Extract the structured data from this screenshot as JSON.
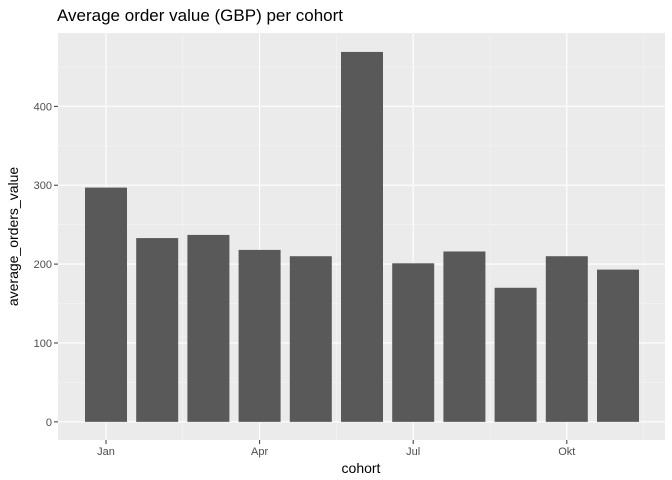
{
  "chart_data": {
    "type": "bar",
    "title": "Average order value (GBP) per cohort",
    "xlabel": "cohort",
    "ylabel": "average_orders_value",
    "x_tick_labels": [
      "Jan",
      "Apr",
      "Jul",
      "Okt"
    ],
    "y_ticks": [
      0,
      100,
      200,
      300,
      400
    ],
    "ylim": [
      -23,
      493
    ],
    "grid": true,
    "series": [
      {
        "x": [
          "2020-01",
          "2020-02",
          "2020-03",
          "2020-04",
          "2020-05",
          "2020-06",
          "2020-07",
          "2020-08",
          "2020-09",
          "2020-10",
          "2020-11"
        ],
        "values": [
          297,
          233,
          237,
          218,
          210,
          469,
          201,
          216,
          170,
          210,
          193
        ]
      }
    ],
    "colors": {
      "bar": "#595959",
      "panel_background": "#ebebeb",
      "grid_major": "#ffffff",
      "grid_minor": "#f5f5f5"
    }
  }
}
